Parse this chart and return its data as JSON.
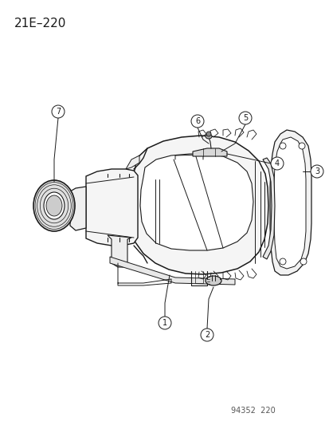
{
  "title": "21E–220",
  "footer": "94352  220",
  "bg": "#ffffff",
  "lc": "#1a1a1a",
  "title_fontsize": 11,
  "footer_fontsize": 7,
  "callout_r": 8,
  "callout_fontsize": 7
}
